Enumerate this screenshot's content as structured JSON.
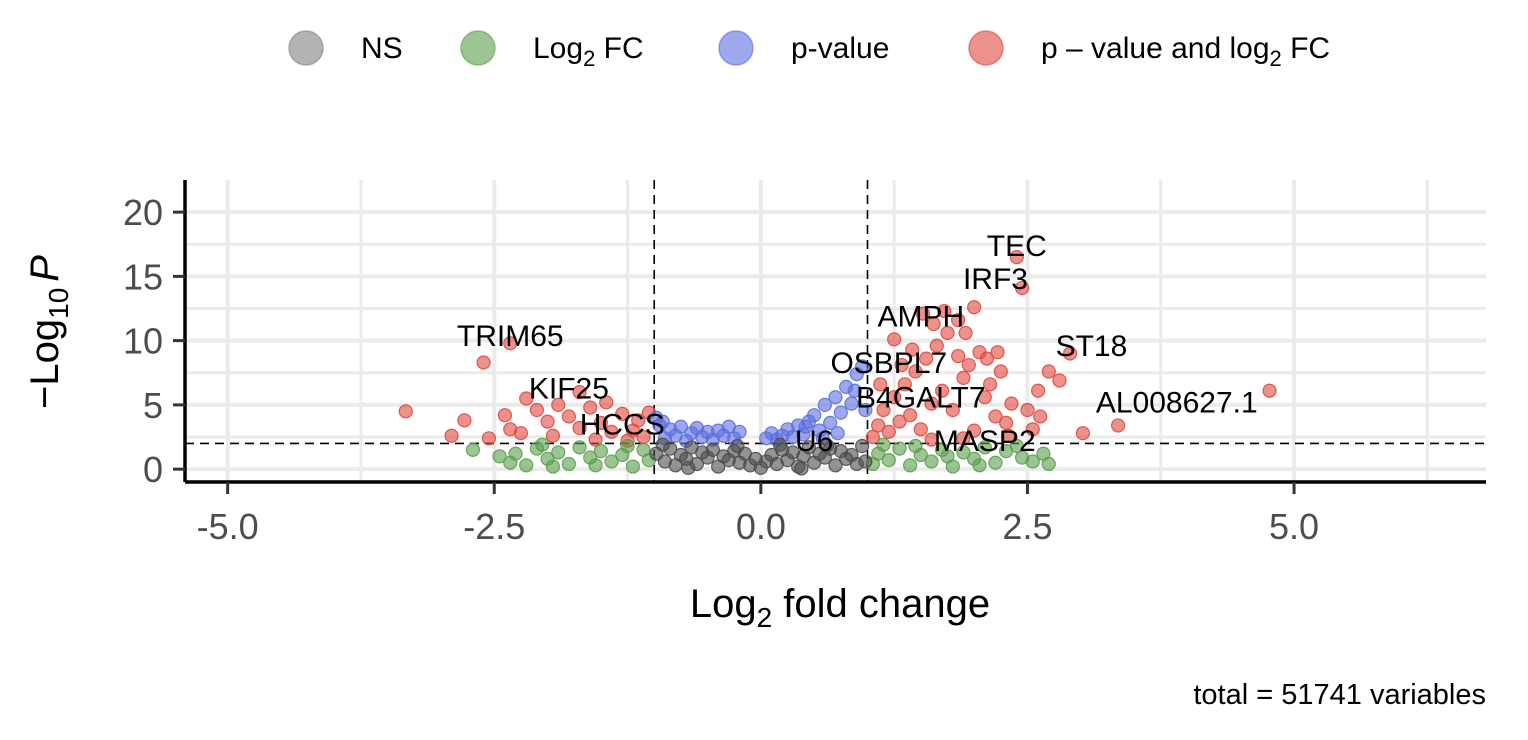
{
  "chart_data": {
    "type": "scatter",
    "xlabel_main": "Log",
    "xlabel_sub": "2",
    "xlabel_rest": " fold change",
    "ylabel_prefix": "−Log",
    "ylabel_sub": "10",
    "ylabel_italic": "P",
    "caption": "total = 51741 variables",
    "xlim": [
      -5.4,
      6.8
    ],
    "ylim": [
      -1.0,
      22.5
    ],
    "x_ticks": [
      -5.0,
      -2.5,
      0.0,
      2.5,
      5.0
    ],
    "x_tick_labels": [
      "-5.0",
      "-2.5",
      "0.0",
      "2.5",
      "5.0"
    ],
    "y_ticks": [
      0,
      5,
      10,
      15,
      20
    ],
    "y_tick_labels": [
      "0",
      "5",
      "10",
      "15",
      "20"
    ],
    "fc_cutoff": [
      -1,
      1
    ],
    "p_cutoff": 2,
    "grid": true,
    "legend_position": "top",
    "legend": [
      {
        "key": "ns",
        "label": "NS",
        "color": "#808080"
      },
      {
        "key": "fc",
        "label_main": "Log",
        "label_sub": "2",
        "label_rest": " FC",
        "color": "#5a9e4b"
      },
      {
        "key": "p",
        "label": "p-value",
        "color": "#5b6fe0"
      },
      {
        "key": "both",
        "label_main": "p – value and log",
        "label_sub": "2",
        "label_rest": " FC",
        "color": "#e0483d"
      }
    ],
    "series": [
      {
        "key": "both",
        "color": "#e0483d",
        "points": [
          [
            -3.33,
            4.5
          ],
          [
            -2.78,
            3.8
          ],
          [
            -2.9,
            2.6
          ],
          [
            -2.55,
            2.4
          ],
          [
            -2.4,
            4.2
          ],
          [
            -2.35,
            3.1
          ],
          [
            -2.2,
            5.5
          ],
          [
            -2.1,
            4.6
          ],
          [
            -2.0,
            3.7
          ],
          [
            -1.9,
            5.0
          ],
          [
            -1.8,
            4.1
          ],
          [
            -1.7,
            3.2
          ],
          [
            -1.6,
            4.8
          ],
          [
            -1.5,
            3.6
          ],
          [
            -1.4,
            2.9
          ],
          [
            -1.3,
            4.3
          ],
          [
            -1.2,
            3.0
          ],
          [
            -1.1,
            2.5
          ],
          [
            -2.6,
            8.3
          ],
          [
            -2.35,
            9.8
          ],
          [
            -1.7,
            6.0
          ],
          [
            -1.45,
            5.2
          ],
          [
            -2.25,
            2.8
          ],
          [
            -1.95,
            2.6
          ],
          [
            -1.15,
            3.8
          ],
          [
            -1.05,
            4.4
          ],
          [
            -1.25,
            2.2
          ],
          [
            -1.55,
            2.3
          ],
          [
            1.05,
            2.5
          ],
          [
            1.1,
            3.4
          ],
          [
            1.15,
            4.6
          ],
          [
            1.2,
            2.9
          ],
          [
            1.25,
            5.6
          ],
          [
            1.3,
            3.7
          ],
          [
            1.35,
            6.6
          ],
          [
            1.4,
            4.2
          ],
          [
            1.45,
            7.6
          ],
          [
            1.5,
            3.1
          ],
          [
            1.55,
            8.6
          ],
          [
            1.6,
            5.1
          ],
          [
            1.65,
            9.6
          ],
          [
            1.7,
            6.1
          ],
          [
            1.75,
            10.6
          ],
          [
            1.8,
            4.6
          ],
          [
            1.85,
            11.6
          ],
          [
            1.9,
            7.1
          ],
          [
            1.95,
            8.1
          ],
          [
            2.0,
            12.6
          ],
          [
            2.05,
            9.1
          ],
          [
            2.1,
            5.6
          ],
          [
            2.15,
            6.6
          ],
          [
            2.2,
            4.1
          ],
          [
            2.25,
            7.6
          ],
          [
            2.3,
            3.6
          ],
          [
            2.35,
            5.1
          ],
          [
            2.4,
            16.5
          ],
          [
            2.45,
            14.1
          ],
          [
            2.5,
            4.6
          ],
          [
            2.55,
            3.1
          ],
          [
            2.6,
            6.1
          ],
          [
            2.7,
            7.6
          ],
          [
            2.8,
            6.9
          ],
          [
            2.9,
            9.0
          ],
          [
            3.02,
            2.8
          ],
          [
            3.35,
            3.4
          ],
          [
            4.77,
            6.1
          ],
          [
            1.25,
            10.1
          ],
          [
            1.42,
            9.3
          ],
          [
            1.62,
            11.3
          ],
          [
            1.85,
            8.8
          ],
          [
            1.52,
            12.1
          ],
          [
            1.72,
            12.3
          ],
          [
            1.32,
            8.1
          ],
          [
            1.12,
            6.6
          ],
          [
            1.92,
            10.6
          ],
          [
            2.12,
            8.6
          ],
          [
            2.22,
            9.1
          ],
          [
            1.6,
            2.3
          ],
          [
            1.9,
            2.4
          ],
          [
            2.0,
            3.0
          ],
          [
            2.32,
            2.6
          ],
          [
            2.62,
            4.1
          ]
        ]
      },
      {
        "key": "p",
        "color": "#5b6fe0",
        "points": [
          [
            -0.95,
            3.4
          ],
          [
            -0.9,
            2.4
          ],
          [
            -0.85,
            3.1
          ],
          [
            -0.8,
            2.6
          ],
          [
            -0.75,
            3.3
          ],
          [
            -0.7,
            2.2
          ],
          [
            -0.65,
            2.8
          ],
          [
            -0.6,
            3.2
          ],
          [
            -0.55,
            2.5
          ],
          [
            -0.5,
            2.9
          ],
          [
            -0.45,
            2.3
          ],
          [
            -0.4,
            3.0
          ],
          [
            -0.35,
            2.6
          ],
          [
            -0.3,
            3.3
          ],
          [
            -0.25,
            2.4
          ],
          [
            -0.2,
            2.9
          ],
          [
            -0.98,
            4.0
          ],
          [
            -0.92,
            3.7
          ],
          [
            0.05,
            2.4
          ],
          [
            0.1,
            2.8
          ],
          [
            0.15,
            2.3
          ],
          [
            0.2,
            2.6
          ],
          [
            0.25,
            3.1
          ],
          [
            0.3,
            2.5
          ],
          [
            0.35,
            3.4
          ],
          [
            0.4,
            2.7
          ],
          [
            0.45,
            3.7
          ],
          [
            0.5,
            4.2
          ],
          [
            0.55,
            3.0
          ],
          [
            0.6,
            5.0
          ],
          [
            0.65,
            3.6
          ],
          [
            0.7,
            5.6
          ],
          [
            0.75,
            4.4
          ],
          [
            0.8,
            6.4
          ],
          [
            0.85,
            5.1
          ],
          [
            0.9,
            7.4
          ],
          [
            0.95,
            8.0
          ],
          [
            0.88,
            6.1
          ],
          [
            0.98,
            4.6
          ],
          [
            0.72,
            2.8
          ],
          [
            0.58,
            2.4
          ],
          [
            0.42,
            3.3
          ]
        ]
      },
      {
        "key": "fc",
        "color": "#5a9e4b",
        "points": [
          [
            -2.7,
            1.5
          ],
          [
            -2.35,
            0.5
          ],
          [
            -2.3,
            1.2
          ],
          [
            -2.2,
            0.3
          ],
          [
            -2.1,
            1.6
          ],
          [
            -2.0,
            0.8
          ],
          [
            -1.9,
            1.3
          ],
          [
            -1.8,
            0.4
          ],
          [
            -1.7,
            1.7
          ],
          [
            -1.6,
            0.9
          ],
          [
            -1.5,
            1.4
          ],
          [
            -1.4,
            0.6
          ],
          [
            -1.3,
            1.1
          ],
          [
            -1.2,
            0.2
          ],
          [
            -1.1,
            1.5
          ],
          [
            -1.05,
            0.7
          ],
          [
            -1.95,
            0.2
          ],
          [
            -1.55,
            0.3
          ],
          [
            -1.25,
            1.8
          ],
          [
            -2.05,
            1.9
          ],
          [
            -2.45,
            1.0
          ],
          [
            1.05,
            0.4
          ],
          [
            1.1,
            1.2
          ],
          [
            1.2,
            0.7
          ],
          [
            1.3,
            1.6
          ],
          [
            1.4,
            0.3
          ],
          [
            1.5,
            1.1
          ],
          [
            1.6,
            0.6
          ],
          [
            1.7,
            1.5
          ],
          [
            1.8,
            0.2
          ],
          [
            1.9,
            1.3
          ],
          [
            2.0,
            0.8
          ],
          [
            2.1,
            1.7
          ],
          [
            2.2,
            0.5
          ],
          [
            2.3,
            1.4
          ],
          [
            2.45,
            0.9
          ],
          [
            2.55,
            0.6
          ],
          [
            2.65,
            1.2
          ],
          [
            2.7,
            0.4
          ],
          [
            1.15,
            1.9
          ],
          [
            1.45,
            1.8
          ],
          [
            1.75,
            1.0
          ],
          [
            2.05,
            0.3
          ],
          [
            2.4,
            1.8
          ]
        ]
      },
      {
        "key": "ns",
        "color": "#4d4d4d",
        "points": [
          [
            -0.98,
            1.2
          ],
          [
            -0.9,
            0.6
          ],
          [
            -0.85,
            1.6
          ],
          [
            -0.8,
            0.3
          ],
          [
            -0.75,
            1.1
          ],
          [
            -0.7,
            0.8
          ],
          [
            -0.65,
            1.7
          ],
          [
            -0.6,
            0.4
          ],
          [
            -0.55,
            1.3
          ],
          [
            -0.5,
            0.9
          ],
          [
            -0.45,
            1.5
          ],
          [
            -0.4,
            0.2
          ],
          [
            -0.35,
            1.0
          ],
          [
            -0.3,
            0.7
          ],
          [
            -0.25,
            1.4
          ],
          [
            -0.2,
            0.5
          ],
          [
            -0.15,
            1.2
          ],
          [
            -0.1,
            0.3
          ],
          [
            -0.05,
            0.8
          ],
          [
            0.0,
            0.1
          ],
          [
            0.05,
            0.6
          ],
          [
            0.1,
            1.1
          ],
          [
            0.15,
            0.4
          ],
          [
            0.2,
            1.5
          ],
          [
            0.25,
            0.7
          ],
          [
            0.3,
            1.3
          ],
          [
            0.35,
            0.2
          ],
          [
            0.4,
            1.0
          ],
          [
            0.45,
            1.7
          ],
          [
            0.5,
            0.5
          ],
          [
            0.55,
            1.2
          ],
          [
            0.6,
            0.9
          ],
          [
            0.65,
            1.6
          ],
          [
            0.7,
            0.3
          ],
          [
            0.75,
            1.4
          ],
          [
            0.8,
            0.8
          ],
          [
            0.85,
            1.1
          ],
          [
            0.9,
            0.4
          ],
          [
            0.95,
            1.8
          ],
          [
            0.98,
            0.6
          ],
          [
            -0.92,
            1.9
          ],
          [
            0.18,
            1.9
          ],
          [
            -0.22,
            1.8
          ],
          [
            0.62,
            1.85
          ],
          [
            -0.68,
            0.1
          ],
          [
            0.38,
            0.05
          ]
        ]
      }
    ],
    "gene_labels": [
      {
        "text": "TEC",
        "x": 2.4,
        "y": 16.6
      },
      {
        "text": "IRF3",
        "x": 2.2,
        "y": 14.0
      },
      {
        "text": "AMPH",
        "x": 1.5,
        "y": 11.1
      },
      {
        "text": "TRIM65",
        "x": -2.35,
        "y": 9.6
      },
      {
        "text": "ST18",
        "x": 3.1,
        "y": 8.8
      },
      {
        "text": "OSBPL7",
        "x": 1.2,
        "y": 7.5
      },
      {
        "text": "KIF25",
        "x": -1.8,
        "y": 5.5
      },
      {
        "text": "B4GALT7",
        "x": 1.5,
        "y": 4.8
      },
      {
        "text": "AL008627.1",
        "x": 3.9,
        "y": 4.4
      },
      {
        "text": "HCCS",
        "x": -1.3,
        "y": 2.7
      },
      {
        "text": "U6",
        "x": 0.5,
        "y": 1.4
      },
      {
        "text": "MASP2",
        "x": 2.1,
        "y": 1.4
      }
    ]
  }
}
